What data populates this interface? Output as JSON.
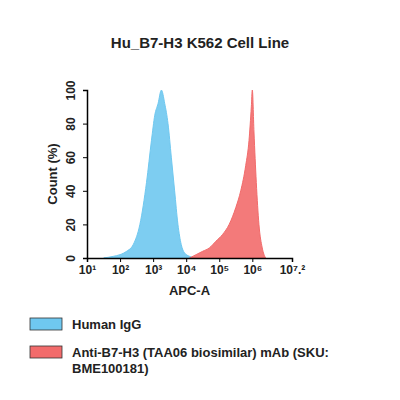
{
  "chart_data": {
    "type": "area",
    "title": "Hu_B7-H3 K562 Cell Line",
    "x_label": "APC-A",
    "y_label": "Count (%)",
    "log": "x",
    "grid": false,
    "legend": "bottom",
    "xlim": [
      10,
      15848931.9
    ],
    "xticks": [
      {
        "value": 10,
        "label": "10¹"
      },
      {
        "value": 100,
        "label": "10²"
      },
      {
        "value": 1000,
        "label": "10³"
      },
      {
        "value": 10000,
        "label": "10⁴"
      },
      {
        "value": 100000,
        "label": "10⁵"
      },
      {
        "value": 1000000,
        "label": "10⁶"
      },
      {
        "value": 15848931.9,
        "label": "10⁷.²"
      }
    ],
    "ylim": [
      0,
      100
    ],
    "yticks": [
      0,
      20,
      40,
      60,
      80,
      100
    ],
    "series": [
      {
        "name": "Human IgG",
        "color": "#6fc8f0",
        "x": [
          32,
          63,
          100,
          158,
          251,
          398,
          631,
          891,
          1122,
          1413,
          1778,
          2239,
          2818,
          3548,
          4467,
          5623,
          7079,
          8913,
          12589,
          19953
        ],
        "values": [
          0,
          1,
          2,
          4,
          8,
          20,
          45,
          70,
          85,
          92,
          100,
          92,
          80,
          60,
          40,
          20,
          8,
          3,
          1,
          0
        ]
      },
      {
        "name": "Anti-B7-H3 (TAA06 biosimilar) mAb (SKU: BME100181)",
        "color": "#f26b6b",
        "x": [
          12589,
          19953,
          31623,
          50119,
          79433,
          125893,
          199526,
          316228,
          446684,
          630957,
          794328,
          933254,
          1000000,
          1122018,
          1318257,
          1584893,
          1995262,
          2511886
        ],
        "values": [
          0,
          2,
          4,
          6,
          10,
          14,
          20,
          30,
          40,
          55,
          70,
          90,
          100,
          75,
          45,
          20,
          6,
          0
        ]
      }
    ]
  }
}
